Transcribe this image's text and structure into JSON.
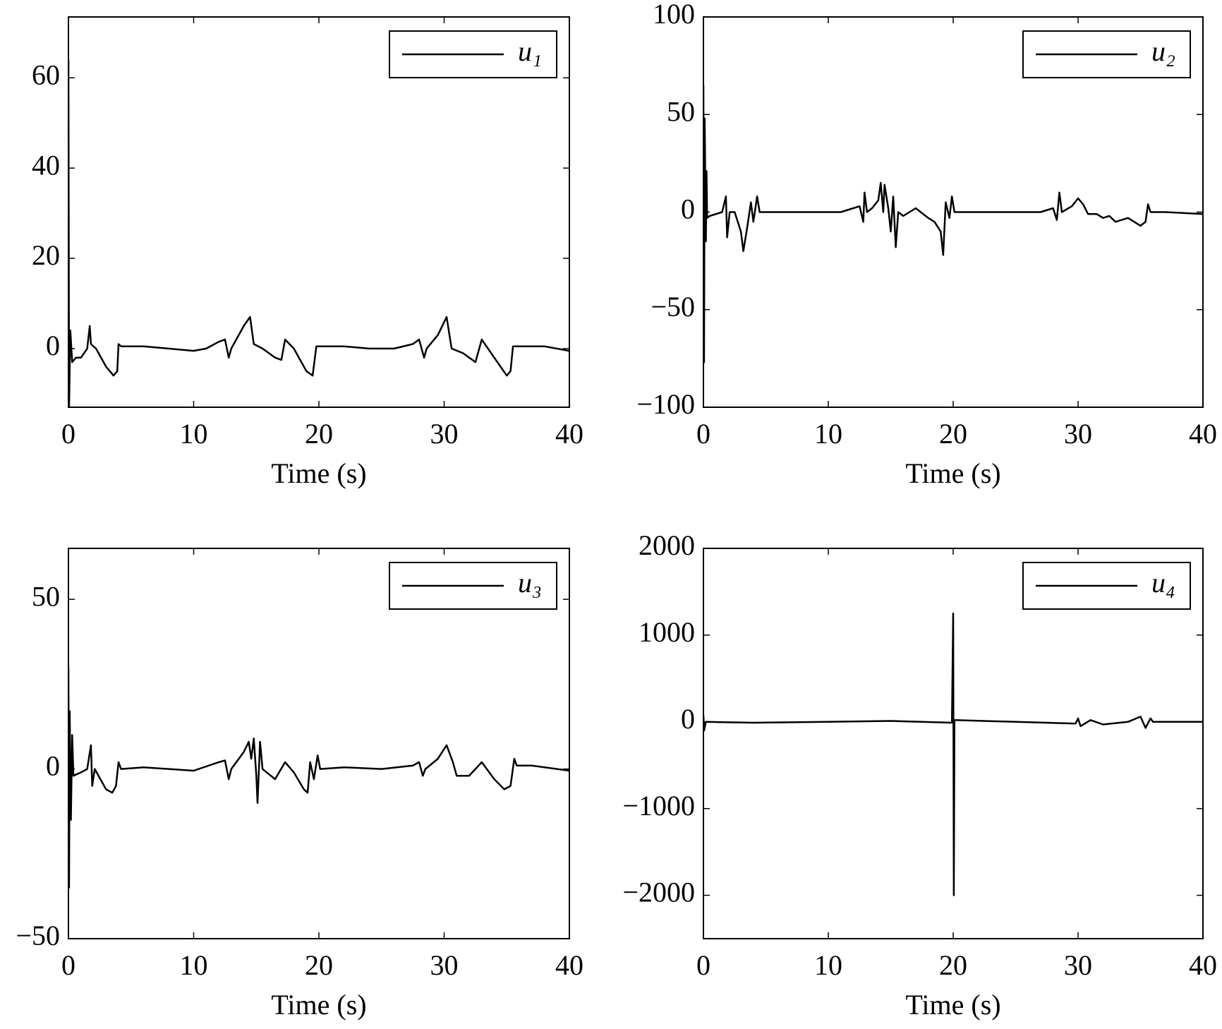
{
  "chart_data": [
    {
      "type": "line",
      "xlabel": "Time (s)",
      "xlim": [
        0,
        40
      ],
      "xticks": [
        0,
        10,
        20,
        30,
        40
      ],
      "ylim": [
        -13,
        73.5
      ],
      "yticks": [
        0,
        20,
        40,
        60
      ],
      "legend": "upper right",
      "grid": false,
      "x": [
        0,
        0.05,
        0.15,
        0.3,
        0.6,
        1.0,
        1.5,
        1.7,
        1.8,
        2.2,
        3.0,
        3.6,
        3.9,
        4.0,
        4.2,
        6,
        8,
        10,
        11,
        12,
        12.5,
        12.8,
        13,
        14,
        14.5,
        14.8,
        15.5,
        16.5,
        17,
        17.3,
        18,
        19,
        19.5,
        19.8,
        20.5,
        22,
        24,
        26,
        27.5,
        28,
        28.4,
        28.6,
        29.5,
        30.2,
        30.6,
        31.5,
        32.5,
        33,
        34,
        35,
        35.3,
        35.5,
        36.5,
        38,
        40
      ],
      "series": [
        {
          "name": "u₁",
          "color": "#000000",
          "values": [
            64,
            -13,
            4,
            -3,
            -2,
            -2,
            0,
            5,
            1,
            0,
            -4,
            -6,
            -5,
            1,
            0.5,
            0.5,
            0,
            -0.5,
            0,
            1.5,
            2,
            -2,
            0,
            5,
            7,
            1,
            0,
            -2,
            -2.5,
            2,
            0,
            -5,
            -6,
            0.5,
            0.5,
            0.5,
            0,
            0,
            1,
            2,
            -2,
            0,
            3,
            7,
            0,
            -1,
            -3,
            2,
            -2,
            -6,
            -5,
            0.5,
            0.5,
            0.5,
            -0.5
          ]
        }
      ]
    },
    {
      "type": "line",
      "xlabel": "Time (s)",
      "xlim": [
        0,
        40
      ],
      "xticks": [
        0,
        10,
        20,
        30,
        40
      ],
      "ylim": [
        -100,
        100
      ],
      "yticks": [
        {
          "value": -100,
          "label": "−100"
        },
        {
          "value": -50,
          "label": "−50"
        },
        0,
        50,
        100
      ],
      "legend": "upper right",
      "grid": false,
      "x": [
        0,
        0.05,
        0.1,
        0.2,
        0.25,
        0.3,
        0.5,
        1,
        1.5,
        1.8,
        1.9,
        2.1,
        2.5,
        3,
        3.2,
        3.5,
        3.8,
        4.0,
        4.3,
        4.5,
        6,
        8,
        10,
        11,
        12,
        12.5,
        12.8,
        12.9,
        13.1,
        13.5,
        14,
        14.2,
        14.4,
        14.5,
        14.8,
        15,
        15.2,
        15.4,
        15.6,
        16,
        17,
        18,
        18.5,
        19,
        19.2,
        19.4,
        19.7,
        19.9,
        20.1,
        22,
        25,
        27,
        28,
        28.3,
        28.5,
        28.7,
        29.5,
        30,
        30.4,
        30.8,
        31.5,
        32,
        32.5,
        33,
        34,
        35,
        35.4,
        35.6,
        35.8,
        37,
        40
      ],
      "series": [
        {
          "name": "u₂",
          "color": "#000000",
          "values": [
            65,
            -77,
            48,
            -15,
            21,
            -3,
            -2,
            -1,
            0,
            8,
            -13,
            0,
            0,
            -10,
            -20,
            -8,
            5,
            -5,
            8,
            0,
            0,
            0,
            0,
            0,
            2,
            3,
            -5,
            10,
            0,
            2,
            6,
            15,
            0,
            14,
            2,
            -10,
            8,
            -18,
            0,
            -2,
            2,
            -3,
            -5,
            -10,
            -22,
            5,
            -3,
            8,
            0,
            0,
            0,
            0,
            2,
            -4,
            10,
            0,
            3,
            7,
            4,
            -1,
            -1,
            -3,
            -2,
            -5,
            -3,
            -7,
            -5,
            4,
            0,
            0,
            -1
          ]
        }
      ]
    },
    {
      "type": "line",
      "xlabel": "Time (s)",
      "xlim": [
        0,
        40
      ],
      "xticks": [
        0,
        10,
        20,
        30,
        40
      ],
      "ylim": [
        -50,
        65
      ],
      "yticks": [
        {
          "value": -50,
          "label": "−50"
        },
        0,
        50
      ],
      "legend": "upper right",
      "grid": false,
      "x": [
        0,
        0.05,
        0.1,
        0.2,
        0.3,
        0.4,
        1,
        1.5,
        1.8,
        1.9,
        2.1,
        3,
        3.5,
        3.8,
        4,
        4.2,
        6,
        8,
        10,
        12,
        12.5,
        12.8,
        13,
        14,
        14.4,
        14.6,
        14.8,
        15,
        15.1,
        15.3,
        15.5,
        16.5,
        17.3,
        18,
        18.8,
        19.1,
        19.3,
        19.6,
        19.9,
        20.1,
        22,
        25,
        27.5,
        28,
        28.3,
        28.5,
        29.5,
        30.2,
        30.7,
        31,
        32,
        33,
        34,
        34.8,
        35.3,
        35.6,
        35.8,
        37,
        40
      ],
      "series": [
        {
          "name": "u₃",
          "color": "#000000",
          "values": [
            30,
            -35,
            17,
            -15,
            10,
            -2,
            -1,
            0,
            7,
            -5,
            0,
            -6,
            -7,
            -5,
            2,
            0,
            0.5,
            0,
            -0.5,
            2,
            2.5,
            -3,
            0,
            5,
            8,
            3,
            9,
            -2,
            -10,
            8,
            0,
            -3,
            2,
            -1,
            -6,
            -7,
            2,
            -3,
            4,
            0,
            0.5,
            0,
            1,
            2,
            -2,
            0,
            3,
            7,
            2,
            -2,
            -2,
            2,
            -3,
            -6,
            -5,
            3,
            1,
            1,
            -0.5
          ]
        }
      ]
    },
    {
      "type": "line",
      "xlabel": "Time (s)",
      "xlim": [
        0,
        40
      ],
      "xticks": [
        0,
        10,
        20,
        30,
        40
      ],
      "ylim": [
        -2500,
        2000
      ],
      "yticks": [
        {
          "value": -2000,
          "label": "−2000"
        },
        {
          "value": -1000,
          "label": "−1000"
        },
        0,
        1000,
        2000
      ],
      "legend": "upper right",
      "grid": false,
      "x": [
        0,
        0.05,
        0.2,
        4,
        10,
        15,
        19.9,
        20.0,
        20.05,
        20.1,
        25,
        29.8,
        30,
        30.2,
        31,
        32,
        34,
        35,
        35.4,
        35.8,
        36,
        40
      ],
      "series": [
        {
          "name": "u₄",
          "color": "#000000",
          "values": [
            80,
            -100,
            0,
            -10,
            0,
            10,
            -10,
            1250,
            -2000,
            20,
            0,
            -20,
            40,
            -50,
            20,
            -30,
            0,
            60,
            -70,
            40,
            0,
            0
          ]
        }
      ]
    }
  ]
}
